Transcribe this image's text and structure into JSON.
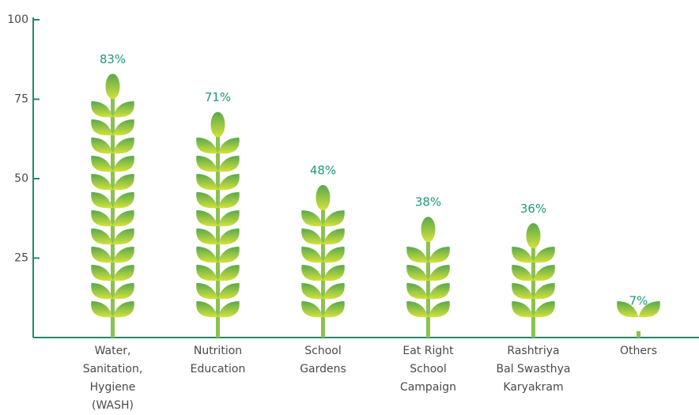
{
  "chart_data": {
    "type": "bar",
    "categories": [
      "Water,\nSanitation,\nHygiene\n(WASH)",
      "Nutrition\nEducation",
      "School\nGardens",
      "Eat Right\nSchool\nCampaign",
      "Rashtriya\nBal Swasthya\nKaryakram",
      "Others"
    ],
    "values": [
      83,
      71,
      48,
      38,
      36,
      7
    ],
    "value_labels": [
      "83%",
      "71%",
      "48%",
      "38%",
      "36%",
      "7%"
    ],
    "ylim": [
      0,
      100
    ],
    "yticks": [
      25,
      50,
      75,
      100
    ]
  }
}
